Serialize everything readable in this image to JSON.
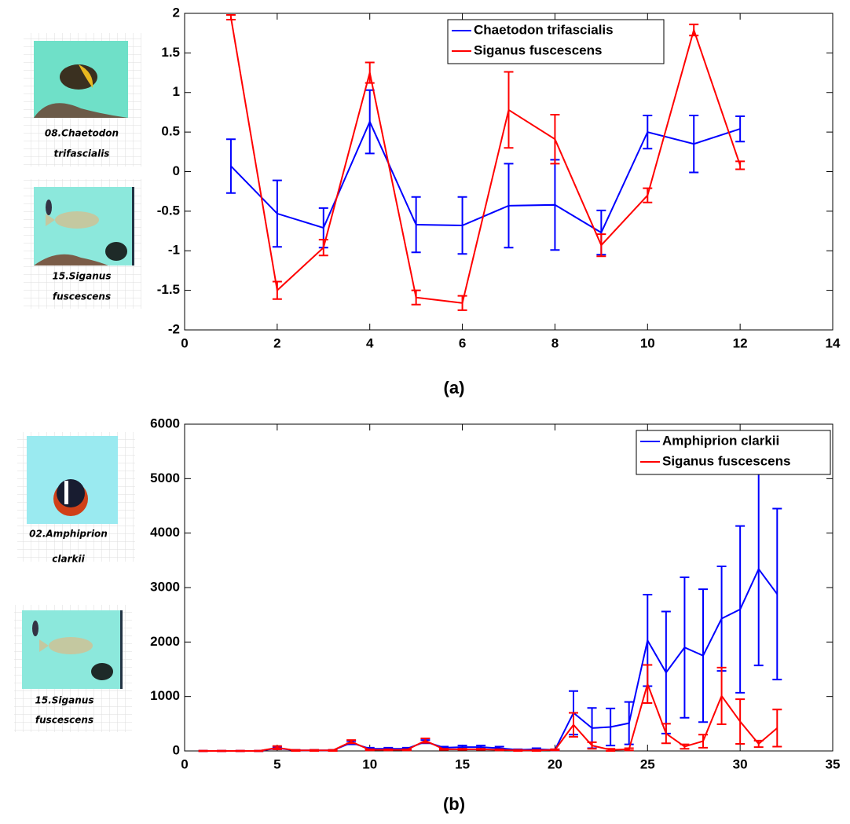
{
  "chart_data": [
    {
      "type": "line",
      "label": "(a)",
      "images": [
        {
          "caption": [
            "08.Chaetodon",
            "trifascialis"
          ]
        },
        {
          "caption": [
            "15.Siganus",
            "fuscescens"
          ]
        }
      ],
      "x": [
        1,
        2,
        3,
        4,
        5,
        6,
        7,
        8,
        9,
        10,
        11,
        12
      ],
      "series": [
        {
          "name": "Chaetodon trifascialis",
          "color": "#0000ff",
          "values": [
            0.07,
            -0.53,
            -0.71,
            0.63,
            -0.67,
            -0.68,
            -0.43,
            -0.42,
            -0.77,
            0.5,
            0.35,
            0.54
          ],
          "errors": [
            0.34,
            0.42,
            0.25,
            0.4,
            0.35,
            0.36,
            0.53,
            0.57,
            0.28,
            0.21,
            0.36,
            0.16
          ]
        },
        {
          "name": "Siganus fuscescens",
          "color": "#ff0000",
          "values": [
            1.95,
            -1.5,
            -0.96,
            1.25,
            -1.59,
            -1.66,
            0.78,
            0.41,
            -0.93,
            -0.3,
            1.79,
            0.08
          ],
          "errors": [
            0.03,
            0.11,
            0.1,
            0.13,
            0.09,
            0.09,
            0.48,
            0.31,
            0.14,
            0.09,
            0.07,
            0.05
          ]
        }
      ],
      "xlim": [
        0,
        14
      ],
      "xticks": [
        0,
        2,
        4,
        6,
        8,
        10,
        12,
        14
      ],
      "ylim": [
        -2,
        2
      ],
      "yticks": [
        -2,
        -1.5,
        -1,
        -0.5,
        0,
        0.5,
        1,
        1.5,
        2
      ],
      "legend": "upper center",
      "grid": false
    },
    {
      "type": "line",
      "label": "(b)",
      "images": [
        {
          "caption": [
            "02.Amphiprion",
            "clarkii"
          ]
        },
        {
          "caption": [
            "15.Siganus",
            "fuscescens"
          ]
        }
      ],
      "x": [
        1,
        2,
        3,
        4,
        5,
        6,
        7,
        8,
        9,
        10,
        11,
        12,
        13,
        14,
        15,
        16,
        17,
        18,
        19,
        20,
        21,
        22,
        23,
        24,
        25,
        26,
        27,
        28,
        29,
        30,
        31,
        32
      ],
      "series": [
        {
          "name": "Amphiprion clarkii",
          "color": "#0000ff",
          "values": [
            0,
            0,
            0,
            0,
            50,
            10,
            10,
            10,
            150,
            40,
            40,
            40,
            170,
            60,
            70,
            70,
            50,
            20,
            30,
            20,
            700,
            420,
            440,
            510,
            2030,
            1440,
            1900,
            1750,
            2430,
            2600,
            3340,
            2880
          ],
          "errors": [
            5,
            5,
            5,
            5,
            20,
            10,
            10,
            10,
            30,
            20,
            20,
            20,
            30,
            20,
            30,
            30,
            30,
            10,
            20,
            10,
            400,
            370,
            340,
            390,
            840,
            1120,
            1290,
            1220,
            960,
            1530,
            1770,
            1570
          ]
        },
        {
          "name": "Siganus fuscescens",
          "color": "#ff0000",
          "values": [
            0,
            0,
            0,
            0,
            60,
            10,
            10,
            10,
            170,
            20,
            20,
            20,
            190,
            30,
            30,
            30,
            20,
            10,
            10,
            20,
            480,
            100,
            20,
            30,
            1230,
            320,
            80,
            180,
            1010,
            540,
            130,
            420
          ],
          "errors": [
            5,
            5,
            5,
            5,
            30,
            10,
            10,
            10,
            30,
            10,
            10,
            10,
            40,
            10,
            10,
            10,
            10,
            10,
            10,
            10,
            220,
            60,
            20,
            20,
            350,
            180,
            40,
            120,
            520,
            410,
            60,
            340
          ]
        }
      ],
      "xlim": [
        0,
        35
      ],
      "xticks": [
        0,
        5,
        10,
        15,
        20,
        25,
        30,
        35
      ],
      "ylim": [
        0,
        6000
      ],
      "yticks": [
        0,
        1000,
        2000,
        3000,
        4000,
        5000,
        6000
      ],
      "legend": "upper right",
      "grid": false
    }
  ]
}
